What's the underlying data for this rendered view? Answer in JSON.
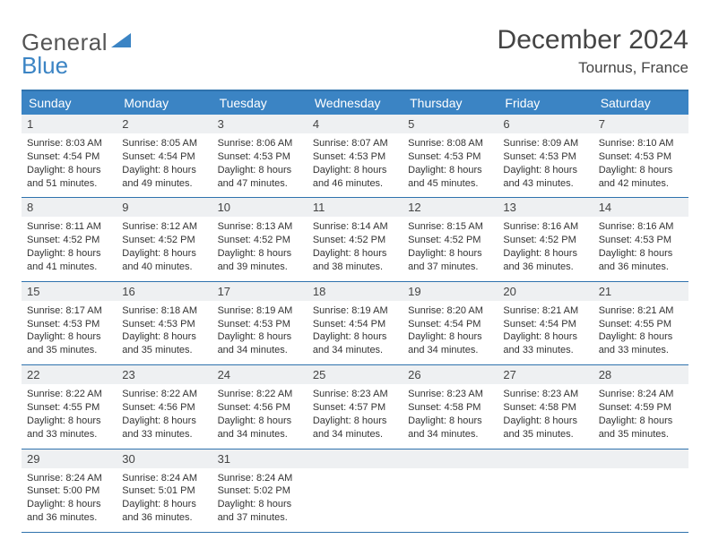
{
  "brand": {
    "word1": "General",
    "word2": "Blue"
  },
  "title": "December 2024",
  "location": "Tournus, France",
  "colors": {
    "accent": "#3b84c4",
    "rule": "#2f72ad",
    "daynum_bg": "#eef0f2"
  },
  "dow": [
    "Sunday",
    "Monday",
    "Tuesday",
    "Wednesday",
    "Thursday",
    "Friday",
    "Saturday"
  ],
  "weeks": [
    [
      {
        "n": "1",
        "sr": "8:03 AM",
        "ss": "4:54 PM",
        "dl": "8 hours and 51 minutes."
      },
      {
        "n": "2",
        "sr": "8:05 AM",
        "ss": "4:54 PM",
        "dl": "8 hours and 49 minutes."
      },
      {
        "n": "3",
        "sr": "8:06 AM",
        "ss": "4:53 PM",
        "dl": "8 hours and 47 minutes."
      },
      {
        "n": "4",
        "sr": "8:07 AM",
        "ss": "4:53 PM",
        "dl": "8 hours and 46 minutes."
      },
      {
        "n": "5",
        "sr": "8:08 AM",
        "ss": "4:53 PM",
        "dl": "8 hours and 45 minutes."
      },
      {
        "n": "6",
        "sr": "8:09 AM",
        "ss": "4:53 PM",
        "dl": "8 hours and 43 minutes."
      },
      {
        "n": "7",
        "sr": "8:10 AM",
        "ss": "4:53 PM",
        "dl": "8 hours and 42 minutes."
      }
    ],
    [
      {
        "n": "8",
        "sr": "8:11 AM",
        "ss": "4:52 PM",
        "dl": "8 hours and 41 minutes."
      },
      {
        "n": "9",
        "sr": "8:12 AM",
        "ss": "4:52 PM",
        "dl": "8 hours and 40 minutes."
      },
      {
        "n": "10",
        "sr": "8:13 AM",
        "ss": "4:52 PM",
        "dl": "8 hours and 39 minutes."
      },
      {
        "n": "11",
        "sr": "8:14 AM",
        "ss": "4:52 PM",
        "dl": "8 hours and 38 minutes."
      },
      {
        "n": "12",
        "sr": "8:15 AM",
        "ss": "4:52 PM",
        "dl": "8 hours and 37 minutes."
      },
      {
        "n": "13",
        "sr": "8:16 AM",
        "ss": "4:52 PM",
        "dl": "8 hours and 36 minutes."
      },
      {
        "n": "14",
        "sr": "8:16 AM",
        "ss": "4:53 PM",
        "dl": "8 hours and 36 minutes."
      }
    ],
    [
      {
        "n": "15",
        "sr": "8:17 AM",
        "ss": "4:53 PM",
        "dl": "8 hours and 35 minutes."
      },
      {
        "n": "16",
        "sr": "8:18 AM",
        "ss": "4:53 PM",
        "dl": "8 hours and 35 minutes."
      },
      {
        "n": "17",
        "sr": "8:19 AM",
        "ss": "4:53 PM",
        "dl": "8 hours and 34 minutes."
      },
      {
        "n": "18",
        "sr": "8:19 AM",
        "ss": "4:54 PM",
        "dl": "8 hours and 34 minutes."
      },
      {
        "n": "19",
        "sr": "8:20 AM",
        "ss": "4:54 PM",
        "dl": "8 hours and 34 minutes."
      },
      {
        "n": "20",
        "sr": "8:21 AM",
        "ss": "4:54 PM",
        "dl": "8 hours and 33 minutes."
      },
      {
        "n": "21",
        "sr": "8:21 AM",
        "ss": "4:55 PM",
        "dl": "8 hours and 33 minutes."
      }
    ],
    [
      {
        "n": "22",
        "sr": "8:22 AM",
        "ss": "4:55 PM",
        "dl": "8 hours and 33 minutes."
      },
      {
        "n": "23",
        "sr": "8:22 AM",
        "ss": "4:56 PM",
        "dl": "8 hours and 33 minutes."
      },
      {
        "n": "24",
        "sr": "8:22 AM",
        "ss": "4:56 PM",
        "dl": "8 hours and 34 minutes."
      },
      {
        "n": "25",
        "sr": "8:23 AM",
        "ss": "4:57 PM",
        "dl": "8 hours and 34 minutes."
      },
      {
        "n": "26",
        "sr": "8:23 AM",
        "ss": "4:58 PM",
        "dl": "8 hours and 34 minutes."
      },
      {
        "n": "27",
        "sr": "8:23 AM",
        "ss": "4:58 PM",
        "dl": "8 hours and 35 minutes."
      },
      {
        "n": "28",
        "sr": "8:24 AM",
        "ss": "4:59 PM",
        "dl": "8 hours and 35 minutes."
      }
    ],
    [
      {
        "n": "29",
        "sr": "8:24 AM",
        "ss": "5:00 PM",
        "dl": "8 hours and 36 minutes."
      },
      {
        "n": "30",
        "sr": "8:24 AM",
        "ss": "5:01 PM",
        "dl": "8 hours and 36 minutes."
      },
      {
        "n": "31",
        "sr": "8:24 AM",
        "ss": "5:02 PM",
        "dl": "8 hours and 37 minutes."
      },
      {
        "blank": true
      },
      {
        "blank": true
      },
      {
        "blank": true
      },
      {
        "blank": true
      }
    ]
  ],
  "labels": {
    "sunrise": "Sunrise: ",
    "sunset": "Sunset: ",
    "daylight": "Daylight: "
  }
}
